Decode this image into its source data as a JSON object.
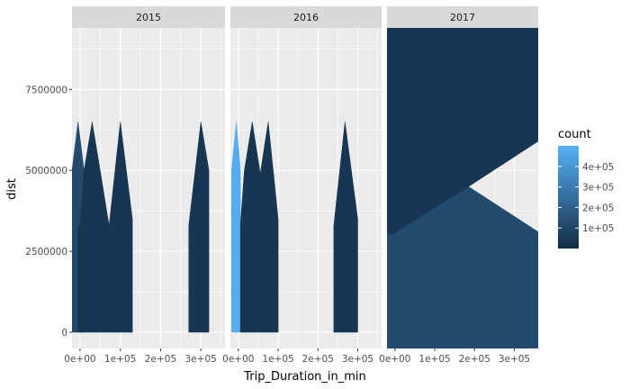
{
  "chart_data": {
    "type": "area",
    "geom": "density-2d-polygons",
    "xlabel": "Trip_Duration_in_min",
    "ylabel": "dist",
    "facets": [
      {
        "label": "2015",
        "polygons": [
          {
            "count": 120000,
            "points": [
              [
                -20000,
                0
              ],
              [
                -20000,
                5000000
              ],
              [
                -5000,
                6500000
              ],
              [
                10000,
                5000000
              ],
              [
                10000,
                0
              ]
            ]
          },
          {
            "count": 40000,
            "points": [
              [
                -5000,
                0
              ],
              [
                -5000,
                3300000
              ],
              [
                0,
                3300000
              ],
              [
                0,
                0
              ]
            ]
          },
          {
            "count": 40000,
            "points": [
              [
                0,
                3300000
              ],
              [
                10000,
                5000000
              ],
              [
                30000,
                6500000
              ],
              [
                50000,
                5000000
              ],
              [
                72000,
                3300000
              ],
              [
                100000,
                6500000
              ],
              [
                130000,
                3500000
              ],
              [
                130000,
                0
              ],
              [
                0,
                0
              ]
            ]
          },
          {
            "count": 40000,
            "points": [
              [
                270000,
                0
              ],
              [
                270000,
                3300000
              ],
              [
                300000,
                6500000
              ],
              [
                320000,
                5000000
              ],
              [
                320000,
                0
              ]
            ]
          }
        ]
      },
      {
        "label": "2016",
        "polygons": [
          {
            "count": 480000,
            "points": [
              [
                -17000,
                0
              ],
              [
                -17000,
                5000000
              ],
              [
                -5000,
                6500000
              ],
              [
                5000,
                5000000
              ],
              [
                5000,
                0
              ]
            ]
          },
          {
            "count": 40000,
            "points": [
              [
                5000,
                0
              ],
              [
                5000,
                3300000
              ],
              [
                15000,
                5000000
              ],
              [
                35000,
                6500000
              ],
              [
                55000,
                4900000
              ],
              [
                75000,
                6500000
              ],
              [
                100000,
                3500000
              ],
              [
                100000,
                0
              ]
            ]
          },
          {
            "count": 40000,
            "points": [
              [
                240000,
                0
              ],
              [
                240000,
                3300000
              ],
              [
                268000,
                6500000
              ],
              [
                300000,
                3500000
              ],
              [
                300000,
                0
              ]
            ]
          }
        ]
      },
      {
        "label": "2017",
        "polygons": [
          {
            "count": 120000,
            "points": [
              [
                -20000,
                -500000
              ],
              [
                -20000,
                3100000
              ],
              [
                -10000,
                3000000
              ],
              [
                185000,
                4500000
              ],
              [
                360000,
                3100000
              ],
              [
                360000,
                -500000
              ]
            ]
          },
          {
            "count": 40000,
            "points": [
              [
                -20000,
                3100000
              ],
              [
                -20000,
                9400000
              ],
              [
                360000,
                9400000
              ],
              [
                360000,
                5900000
              ],
              [
                185000,
                4500000
              ],
              [
                -10000,
                3000000
              ]
            ]
          }
        ]
      }
    ],
    "xlim": [
      -20000,
      360000
    ],
    "ylim": [
      -500000,
      9400000
    ],
    "x_ticks": [
      0,
      100000,
      200000,
      300000
    ],
    "x_tick_labels": [
      "0e+00",
      "1e+05",
      "2e+05",
      "3e+05"
    ],
    "y_ticks": [
      0,
      2500000,
      5000000,
      7500000
    ],
    "y_tick_labels": [
      "0",
      "2500000",
      "5000000",
      "7500000"
    ],
    "grid": true,
    "legend": {
      "title": "count",
      "placement": "right",
      "range": [
        0,
        500000
      ],
      "breaks": [
        100000,
        200000,
        300000,
        400000
      ],
      "break_labels": [
        "1e+05",
        "2e+05",
        "3e+05",
        "4e+05"
      ],
      "low_color": "#132B43",
      "high_color": "#56B1F7"
    },
    "colors": {
      "panel_background": "#EBEBEB",
      "grid_line": "#FFFFFF",
      "strip_background": "#D9D9D9"
    }
  }
}
